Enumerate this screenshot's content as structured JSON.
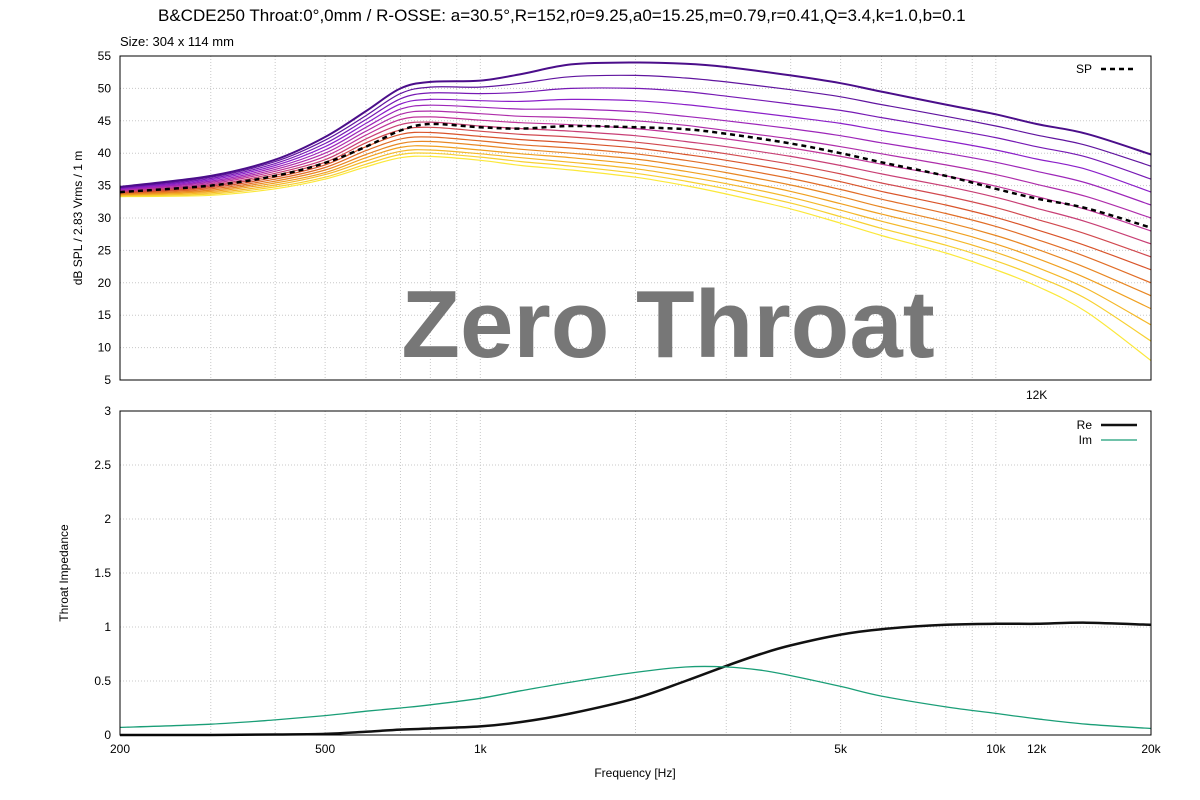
{
  "header": {
    "title": "B&CDE250 Throat:0°,0mm / R-OSSE: a=30.5°,R=152,r0=9.25,a0=15.25,m=0.79,r=0.41,Q=3.4,k=1.0,b=0.1",
    "size_label": "Size: 304 x 114 mm"
  },
  "watermark": "Zero Throat",
  "colors": {
    "sp_dashed": "#000000",
    "re": "#111111",
    "im": "#1a9e77",
    "family_gradient": [
      "#4b0e8a",
      "#8b1fc9",
      "#c0349a",
      "#d9542a",
      "#f0a020",
      "#fbe83a"
    ]
  },
  "chart_data": [
    {
      "type": "line",
      "name": "spl",
      "xscale": "log",
      "xlim": [
        200,
        20000
      ],
      "ylim": [
        5,
        55
      ],
      "ylabel": "dB SPL / 2.83 Vrms / 1 m",
      "yticks": [
        5,
        10,
        15,
        20,
        25,
        30,
        35,
        40,
        45,
        50,
        55
      ],
      "annotation": "12K",
      "annotation_x": 12000,
      "grid": true,
      "legend": {
        "position": "top-right",
        "entries": [
          "SP"
        ]
      },
      "family_note": "polar curves from 0° (darkest) to off-axis (yellow)",
      "series": [
        {
          "name": "SP",
          "style": "dashed",
          "x": [
            200,
            300,
            400,
            500,
            600,
            700,
            800,
            1000,
            1200,
            1500,
            2000,
            2500,
            3000,
            4000,
            5000,
            6000,
            8000,
            10000,
            12000,
            15000,
            20000
          ],
          "y": [
            34,
            35,
            36.5,
            38.5,
            41,
            43.5,
            44.5,
            44,
            43.8,
            44.2,
            44,
            43.7,
            43,
            41.5,
            40,
            38.6,
            36.5,
            34.5,
            33,
            31.5,
            28.5
          ]
        },
        {
          "style": "family",
          "x": [
            200,
            300,
            400,
            500,
            600,
            700,
            800,
            1000,
            1200,
            1500,
            2000,
            2500,
            3000,
            4000,
            5000,
            6000,
            8000,
            10000,
            12000,
            15000,
            20000
          ],
          "y": [
            34.8,
            36.5,
            39,
            42.5,
            46.5,
            50,
            51,
            51.2,
            52.2,
            53.7,
            54,
            53.8,
            53.3,
            52,
            50.8,
            49.5,
            47.5,
            46,
            44.5,
            43,
            39.8
          ]
        },
        {
          "style": "family",
          "x": [
            200,
            300,
            400,
            500,
            600,
            700,
            800,
            1000,
            1200,
            1500,
            2000,
            2500,
            3000,
            4000,
            5000,
            6000,
            8000,
            10000,
            12000,
            15000,
            20000
          ],
          "y": [
            34.7,
            36.3,
            38.7,
            42,
            45.8,
            49.2,
            50.2,
            50.2,
            50.8,
            51.8,
            52,
            51.6,
            51,
            49.8,
            48.7,
            47.5,
            45.7,
            44.2,
            42.8,
            41.2,
            38
          ]
        },
        {
          "style": "family",
          "x": [
            200,
            300,
            400,
            500,
            600,
            700,
            800,
            1000,
            1200,
            1500,
            2000,
            2500,
            3000,
            4000,
            5000,
            6000,
            8000,
            10000,
            12000,
            15000,
            20000
          ],
          "y": [
            34.6,
            36.1,
            38.4,
            41.5,
            45.2,
            48.4,
            49.3,
            49.2,
            49.4,
            50,
            50,
            49.5,
            48.8,
            47.6,
            46.6,
            45.5,
            43.8,
            42.4,
            41,
            39.4,
            36
          ]
        },
        {
          "style": "family",
          "x": [
            200,
            300,
            400,
            500,
            600,
            700,
            800,
            1000,
            1200,
            1500,
            2000,
            2500,
            3000,
            4000,
            5000,
            6000,
            8000,
            10000,
            12000,
            15000,
            20000
          ],
          "y": [
            34.5,
            35.9,
            38.1,
            41,
            44.6,
            47.6,
            48.3,
            48.1,
            48,
            48.3,
            48.1,
            47.5,
            46.8,
            45.6,
            44.6,
            43.5,
            41.9,
            40.5,
            39.1,
            37.5,
            34
          ]
        },
        {
          "style": "family",
          "x": [
            200,
            300,
            400,
            500,
            600,
            700,
            800,
            1000,
            1200,
            1500,
            2000,
            2500,
            3000,
            4000,
            5000,
            6000,
            8000,
            10000,
            12000,
            15000,
            20000
          ],
          "y": [
            34.4,
            35.7,
            37.8,
            40.5,
            44,
            46.8,
            47.4,
            47.1,
            46.8,
            46.8,
            46.4,
            45.7,
            45,
            43.8,
            42.7,
            41.6,
            40,
            38.6,
            37.2,
            35.4,
            32
          ]
        },
        {
          "style": "family",
          "x": [
            200,
            300,
            400,
            500,
            600,
            700,
            800,
            1000,
            1200,
            1500,
            2000,
            2500,
            3000,
            4000,
            5000,
            6000,
            8000,
            10000,
            12000,
            15000,
            20000
          ],
          "y": [
            34.3,
            35.5,
            37.5,
            40,
            43.4,
            46,
            46.5,
            46.1,
            45.7,
            45.5,
            45,
            44.3,
            43.5,
            42.2,
            41,
            39.9,
            38.2,
            36.7,
            35.2,
            33.3,
            30
          ]
        },
        {
          "style": "family",
          "x": [
            200,
            300,
            400,
            500,
            600,
            700,
            800,
            1000,
            1200,
            1500,
            2000,
            2500,
            3000,
            4000,
            5000,
            6000,
            8000,
            10000,
            12000,
            15000,
            20000
          ],
          "y": [
            34.2,
            35.3,
            37.2,
            39.5,
            42.8,
            45.2,
            45.6,
            45.1,
            44.7,
            44.4,
            43.8,
            43,
            42.2,
            40.8,
            39.5,
            38.3,
            36.5,
            34.9,
            33.3,
            31.3,
            28
          ]
        },
        {
          "style": "family",
          "x": [
            200,
            300,
            400,
            500,
            600,
            700,
            800,
            1000,
            1200,
            1500,
            2000,
            2500,
            3000,
            4000,
            5000,
            6000,
            8000,
            10000,
            12000,
            15000,
            20000
          ],
          "y": [
            34.1,
            35.1,
            36.9,
            39,
            42.2,
            44.4,
            44.8,
            44.2,
            43.8,
            43.4,
            42.7,
            41.8,
            41,
            39.5,
            38.1,
            36.8,
            34.9,
            33.2,
            31.5,
            29.4,
            26
          ]
        },
        {
          "style": "family",
          "x": [
            200,
            300,
            400,
            500,
            600,
            700,
            800,
            1000,
            1200,
            1500,
            2000,
            2500,
            3000,
            4000,
            5000,
            6000,
            8000,
            10000,
            12000,
            15000,
            20000
          ],
          "y": [
            34,
            34.9,
            36.6,
            38.6,
            41.6,
            43.6,
            44,
            43.4,
            42.9,
            42.5,
            41.7,
            40.8,
            39.9,
            38.3,
            36.8,
            35.4,
            33.4,
            31.6,
            29.8,
            27.5,
            24
          ]
        },
        {
          "style": "family",
          "x": [
            200,
            300,
            400,
            500,
            600,
            700,
            800,
            1000,
            1200,
            1500,
            2000,
            2500,
            3000,
            4000,
            5000,
            6000,
            8000,
            10000,
            12000,
            15000,
            20000
          ],
          "y": [
            33.9,
            34.7,
            36.3,
            38.2,
            41,
            42.9,
            43.2,
            42.6,
            42.1,
            41.6,
            40.8,
            39.8,
            38.9,
            37.2,
            35.6,
            34.1,
            32,
            30.1,
            28.2,
            25.7,
            22
          ]
        },
        {
          "style": "family",
          "x": [
            200,
            300,
            400,
            500,
            600,
            700,
            800,
            1000,
            1200,
            1500,
            2000,
            2500,
            3000,
            4000,
            5000,
            6000,
            8000,
            10000,
            12000,
            15000,
            20000
          ],
          "y": [
            33.8,
            34.5,
            36,
            37.8,
            40.4,
            42.2,
            42.5,
            41.9,
            41.3,
            40.8,
            39.9,
            38.9,
            37.9,
            36.1,
            34.4,
            32.9,
            30.7,
            28.7,
            26.7,
            24,
            20
          ]
        },
        {
          "style": "family",
          "x": [
            200,
            300,
            400,
            500,
            600,
            700,
            800,
            1000,
            1200,
            1500,
            2000,
            2500,
            3000,
            4000,
            5000,
            6000,
            8000,
            10000,
            12000,
            15000,
            20000
          ],
          "y": [
            33.7,
            34.3,
            35.7,
            37.4,
            39.8,
            41.5,
            41.8,
            41.2,
            40.6,
            40,
            39.1,
            38,
            37,
            35.1,
            33.3,
            31.7,
            29.4,
            27.3,
            25.2,
            22.3,
            18
          ]
        },
        {
          "style": "family",
          "x": [
            200,
            300,
            400,
            500,
            600,
            700,
            800,
            1000,
            1200,
            1500,
            2000,
            2500,
            3000,
            4000,
            5000,
            6000,
            8000,
            10000,
            12000,
            15000,
            20000
          ],
          "y": [
            33.6,
            34.1,
            35.4,
            37,
            39.3,
            40.9,
            41.1,
            40.5,
            39.9,
            39.3,
            38.3,
            37.2,
            36.1,
            34.1,
            32.2,
            30.6,
            28.2,
            26,
            23.8,
            20.7,
            16
          ]
        },
        {
          "style": "family",
          "x": [
            200,
            300,
            400,
            500,
            600,
            700,
            800,
            1000,
            1200,
            1500,
            2000,
            2500,
            3000,
            4000,
            5000,
            6000,
            8000,
            10000,
            12000,
            15000,
            20000
          ],
          "y": [
            33.5,
            33.9,
            35.1,
            36.7,
            38.8,
            40.3,
            40.5,
            39.9,
            39.3,
            38.6,
            37.6,
            36.4,
            35.3,
            33.2,
            31.2,
            29.5,
            27,
            24.7,
            22.4,
            19.1,
            13.5
          ]
        },
        {
          "style": "family",
          "x": [
            200,
            300,
            400,
            500,
            600,
            700,
            800,
            1000,
            1200,
            1500,
            2000,
            2500,
            3000,
            4000,
            5000,
            6000,
            8000,
            10000,
            12000,
            15000,
            20000
          ],
          "y": [
            33.4,
            33.7,
            34.8,
            36.3,
            38.3,
            39.8,
            40,
            39.4,
            38.7,
            38,
            36.9,
            35.7,
            34.5,
            32.3,
            30.2,
            28.4,
            25.8,
            23.4,
            21,
            17.5,
            11
          ]
        },
        {
          "style": "family",
          "x": [
            200,
            300,
            400,
            500,
            600,
            700,
            800,
            1000,
            1200,
            1500,
            2000,
            2500,
            3000,
            4000,
            5000,
            6000,
            8000,
            10000,
            12000,
            15000,
            20000
          ],
          "y": [
            33.3,
            33.5,
            34.5,
            36,
            37.9,
            39.3,
            39.5,
            38.9,
            38.1,
            37.4,
            36.3,
            35,
            33.7,
            31.4,
            29.2,
            27.3,
            24.6,
            22,
            19.5,
            15.5,
            8
          ]
        }
      ]
    },
    {
      "type": "line",
      "name": "impedance",
      "xscale": "log",
      "xlim": [
        200,
        20000
      ],
      "ylim": [
        0,
        3
      ],
      "xlabel": "Frequency [Hz]",
      "ylabel": "Throat Impedance",
      "xticks": [
        200,
        500,
        1000,
        5000,
        10000,
        12000,
        20000
      ],
      "xtick_labels": [
        "200",
        "500",
        "1k",
        "5k",
        "10k",
        "12k",
        "20k"
      ],
      "yticks": [
        0,
        0.5,
        1,
        1.5,
        2,
        2.5,
        3
      ],
      "ytick_labels": [
        "0",
        "0.5",
        "1",
        "1.5",
        "2",
        "2.5",
        "3"
      ],
      "grid": true,
      "legend": {
        "position": "top-right",
        "entries": [
          "Re",
          "Im"
        ]
      },
      "series": [
        {
          "name": "Re",
          "x": [
            200,
            300,
            400,
            500,
            600,
            700,
            800,
            1000,
            1200,
            1500,
            2000,
            2500,
            3000,
            3500,
            4000,
            5000,
            6000,
            8000,
            10000,
            12000,
            15000,
            20000
          ],
          "y": [
            0,
            0,
            0.005,
            0.01,
            0.03,
            0.05,
            0.06,
            0.08,
            0.12,
            0.2,
            0.34,
            0.5,
            0.64,
            0.75,
            0.83,
            0.93,
            0.98,
            1.02,
            1.03,
            1.03,
            1.04,
            1.02
          ]
        },
        {
          "name": "Im",
          "x": [
            200,
            300,
            400,
            500,
            600,
            700,
            800,
            1000,
            1200,
            1500,
            2000,
            2500,
            3000,
            3500,
            4000,
            5000,
            6000,
            8000,
            10000,
            12000,
            15000,
            20000
          ],
          "y": [
            0.07,
            0.1,
            0.14,
            0.18,
            0.22,
            0.25,
            0.28,
            0.34,
            0.41,
            0.49,
            0.58,
            0.63,
            0.63,
            0.6,
            0.55,
            0.45,
            0.36,
            0.26,
            0.2,
            0.15,
            0.1,
            0.06
          ]
        }
      ]
    }
  ]
}
